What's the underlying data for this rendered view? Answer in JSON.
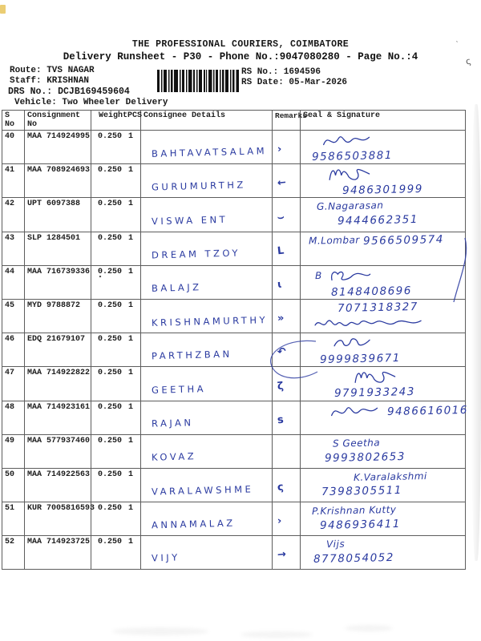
{
  "ink_color": "#2a3aa0",
  "header": {
    "title": "THE PROFESSIONAL COURIERS, COIMBATORE",
    "subtitle": "Delivery Runsheet - P30 - Phone No.:9047080280 - Page No.:4"
  },
  "info": {
    "route": "Route: TVS NAGAR",
    "staff": "Staff: KRISHNAN",
    "drs_no": "DRS No.: DCJB169459604",
    "vehicle": "Vehicle: Two Wheeler Delivery",
    "rs_no": "RS No.: 1694596",
    "rs_date": "RS Date: 05-Mar-2026"
  },
  "barcode_name": "shipment-barcode",
  "table": {
    "headers": {
      "s_no": "S No",
      "consignment": "Consignment No",
      "weight": "Weight",
      "pcs": "PCS",
      "consignee": "Consignee Details",
      "remarks": "Remarks",
      "seal": "Seal & Signature"
    },
    "rows": [
      {
        "s_no": "40",
        "consignment": "MAA 714924995",
        "weight": "0.250",
        "pcs": "1",
        "consignee": "BAHTAVATSALAM",
        "remark": "›",
        "seal": [
          {
            "scribble": "s1",
            "indent": 14
          },
          {
            "text": "9586503881",
            "indent": 6
          }
        ]
      },
      {
        "s_no": "41",
        "consignment": "MAA 708924693",
        "weight": "0.250",
        "pcs": "1",
        "consignee": "GURUMURTHZ",
        "remark": "←",
        "seal": [
          {
            "scribble": "s2",
            "indent": 20
          },
          {
            "text": "9486301999",
            "indent": 44
          }
        ]
      },
      {
        "s_no": "42",
        "consignment": "UPT 6097388",
        "weight": "0.250",
        "pcs": "1",
        "consignee": "VISWA ENT",
        "remark": "⌣",
        "seal": [
          {
            "name": "G.Nagarasan",
            "indent": 12
          },
          {
            "text": "9444662351",
            "indent": 38
          }
        ]
      },
      {
        "s_no": "43",
        "consignment": "SLP 1284501",
        "weight": "0.250",
        "pcs": "1",
        "consignee": "DREAM TZOY",
        "remark": "L",
        "seal": [
          {
            "name": "M.Lombar",
            "text": "9566509574",
            "indent": 2
          }
        ]
      },
      {
        "s_no": "44",
        "consignment": "MAA 716739336",
        "weight": "0.250 ˚",
        "pcs": "1",
        "consignee": "BALAJZ",
        "remark": "ɩ",
        "seal": [
          {
            "name": "B",
            "scribble": "s3",
            "indent": 10
          },
          {
            "text": "8148408696",
            "indent": 30
          }
        ]
      },
      {
        "s_no": "45",
        "consignment": "MYD 9788872",
        "weight": "0.250",
        "pcs": "1",
        "consignee": "KRISHNAMURTHY",
        "remark": "»",
        "seal": [
          {
            "text": "7071318327",
            "indent": 38
          },
          {
            "scribble": "s4",
            "indent": 2
          }
        ]
      },
      {
        "s_no": "46",
        "consignment": "EDQ 21679107",
        "weight": "0.250",
        "pcs": "1",
        "consignee": "PARTHZBAN",
        "remark": "↶",
        "seal": [
          {
            "scribble": "s5",
            "indent": 28
          },
          {
            "text": "9999839671",
            "indent": 16
          }
        ]
      },
      {
        "s_no": "47",
        "consignment": "MAA 714922822",
        "weight": "0.250",
        "pcs": "1",
        "consignee": "GEETHA",
        "remark": "ζ",
        "seal": [
          {
            "scribble": "s2",
            "indent": 52
          },
          {
            "text": "9791933243",
            "indent": 34
          }
        ]
      },
      {
        "s_no": "48",
        "consignment": "MAA 714923161",
        "weight": "0.250",
        "pcs": "1",
        "consignee": "RAJAN",
        "remark": "s",
        "seal": [
          {
            "scribble": "s1",
            "text": "9486616016",
            "indent": 24
          }
        ]
      },
      {
        "s_no": "49",
        "consignment": "MAA 577937460",
        "weight": "0.250",
        "pcs": "1",
        "consignee": "KOVAZ",
        "remark": "",
        "seal": [
          {
            "name": "S Geetha",
            "indent": 32
          },
          {
            "text": "9993802653",
            "indent": 22
          }
        ]
      },
      {
        "s_no": "50",
        "consignment": "MAA 714922563",
        "weight": "0.250",
        "pcs": "1",
        "consignee": "VARALAWSHME",
        "remark": "ς",
        "seal": [
          {
            "name": "K.Varalakshmi",
            "indent": 58
          },
          {
            "text": "7398305511",
            "indent": 18
          }
        ]
      },
      {
        "s_no": "51",
        "consignment": "KUR 7005816593",
        "weight": "0.250",
        "pcs": "1",
        "consignee": "ANNAMALAZ",
        "remark": "›",
        "seal": [
          {
            "name": "P.Krishnan Kutty",
            "indent": 6
          },
          {
            "text": "9486936411",
            "indent": 16
          }
        ]
      },
      {
        "s_no": "52",
        "consignment": "MAA 714923725",
        "weight": "0.250",
        "pcs": "1",
        "consignee": "VIJY",
        "remark": "→",
        "seal": [
          {
            "name": "Vijs",
            "indent": 24
          },
          {
            "text": "8778054052",
            "indent": 8
          }
        ]
      }
    ]
  }
}
